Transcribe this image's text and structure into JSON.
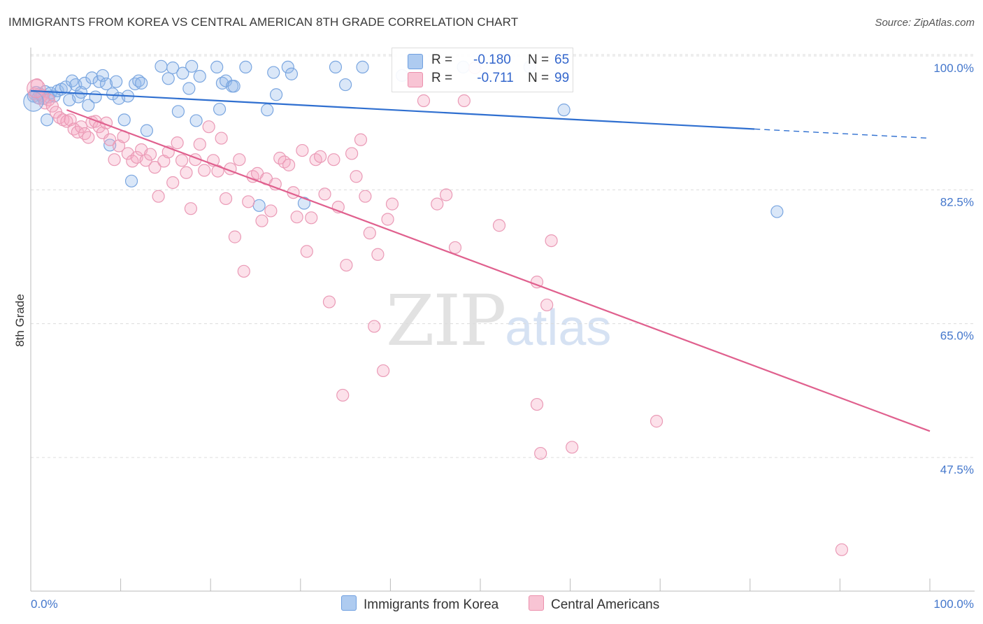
{
  "header": {
    "title": "IMMIGRANTS FROM KOREA VS CENTRAL AMERICAN 8TH GRADE CORRELATION CHART",
    "source": "Source: ZipAtlas.com"
  },
  "watermark": {
    "zip": "ZIP",
    "atlas": "atlas"
  },
  "legend": {
    "rows": [
      {
        "r_label": "R =",
        "r_value": "-0.180",
        "n_label": "N =",
        "n_value": "65",
        "color": "#aecbf0",
        "border": "#6f9fe0"
      },
      {
        "r_label": "R =",
        "r_value": " -0.711",
        "n_label": "N =",
        "n_value": "99",
        "color": "#f8c4d4",
        "border": "#ec8fac"
      }
    ]
  },
  "bottom_legend": [
    {
      "label": "Immigrants from Korea",
      "color": "#aecbf0",
      "border": "#6f9fe0"
    },
    {
      "label": "Central Americans",
      "color": "#f8c4d4",
      "border": "#ec8fac"
    }
  ],
  "colors": {
    "korea_fill": "rgba(150,185,235,0.35)",
    "korea_stroke": "#7aa6e0",
    "korea_line": "#2f6fd0",
    "central_fill": "rgba(245,170,195,0.35)",
    "central_stroke": "#ea9ab6",
    "central_line": "#e0608e",
    "grid": "#dcdcdc",
    "tick_text": "#4477cc"
  },
  "chart_data": {
    "type": "scatter",
    "title": "IMMIGRANTS FROM KOREA VS CENTRAL AMERICAN 8TH GRADE CORRELATION CHART",
    "xlabel": "",
    "ylabel": "8th Grade",
    "xlim": [
      0,
      100
    ],
    "ylim": [
      31.5,
      103.0
    ],
    "x_tick_labels": [
      "0.0%",
      "100.0%"
    ],
    "y_ticks": [
      100.0,
      82.5,
      65.0,
      47.5
    ],
    "y_tick_labels": [
      "100.0%",
      "82.5%",
      "65.0%",
      "47.5%"
    ],
    "grid": true,
    "legend_position": "top-center",
    "series": [
      {
        "name": "Immigrants from Korea",
        "R": -0.18,
        "N": 65,
        "trend": {
          "x0": 0,
          "y0": 97.0,
          "x1": 80.5,
          "y1": 92.0,
          "dashed_to_x": 100,
          "dashed_to_y": 90.8
        },
        "points": [
          [
            0.3,
            96.3
          ],
          [
            0.6,
            96.8
          ],
          [
            0.8,
            96.1
          ],
          [
            1.0,
            96.6
          ],
          [
            1.2,
            96.4
          ],
          [
            1.4,
            96.0
          ],
          [
            1.6,
            96.9
          ],
          [
            1.8,
            93.2
          ],
          [
            2.0,
            96.2
          ],
          [
            2.2,
            96.7
          ],
          [
            2.6,
            96.3
          ],
          [
            3.0,
            97.0
          ],
          [
            3.4,
            97.2
          ],
          [
            3.9,
            97.5
          ],
          [
            4.3,
            95.8
          ],
          [
            4.6,
            98.3
          ],
          [
            5.0,
            97.8
          ],
          [
            5.3,
            96.2
          ],
          [
            5.6,
            96.8
          ],
          [
            6.0,
            98.0
          ],
          [
            6.4,
            95.1
          ],
          [
            6.8,
            98.7
          ],
          [
            7.2,
            96.2
          ],
          [
            7.6,
            98.2
          ],
          [
            8.0,
            99.0
          ],
          [
            8.4,
            97.9
          ],
          [
            8.8,
            89.9
          ],
          [
            9.1,
            96.6
          ],
          [
            9.5,
            98.2
          ],
          [
            9.8,
            96.0
          ],
          [
            10.4,
            93.2
          ],
          [
            10.8,
            96.3
          ],
          [
            11.2,
            85.2
          ],
          [
            11.6,
            97.9
          ],
          [
            12.0,
            98.3
          ],
          [
            12.3,
            98.0
          ],
          [
            12.9,
            91.8
          ],
          [
            14.5,
            100.2
          ],
          [
            15.3,
            98.6
          ],
          [
            15.8,
            100.0
          ],
          [
            16.4,
            94.3
          ],
          [
            16.9,
            99.3
          ],
          [
            17.6,
            97.3
          ],
          [
            17.9,
            100.2
          ],
          [
            18.4,
            93.1
          ],
          [
            18.8,
            98.9
          ],
          [
            20.7,
            100.1
          ],
          [
            21.0,
            94.6
          ],
          [
            21.3,
            98.0
          ],
          [
            21.7,
            98.3
          ],
          [
            22.4,
            97.6
          ],
          [
            22.6,
            97.6
          ],
          [
            23.9,
            100.1
          ],
          [
            25.4,
            82.0
          ],
          [
            26.3,
            94.5
          ],
          [
            27.0,
            99.4
          ],
          [
            27.3,
            96.5
          ],
          [
            28.6,
            100.1
          ],
          [
            29.0,
            99.2
          ],
          [
            30.4,
            82.3
          ],
          [
            33.9,
            100.1
          ],
          [
            35.0,
            97.8
          ],
          [
            36.9,
            100.1
          ],
          [
            41.3,
            99.0
          ],
          [
            48.1,
            100.1
          ]
        ],
        "extra_points": [
          [
            55.5,
            100.1
          ],
          [
            59.3,
            94.5
          ],
          [
            83.0,
            81.2
          ]
        ]
      },
      {
        "name": "Central Americans",
        "R": -0.711,
        "N": 99,
        "trend": {
          "x0": 4.0,
          "y0": 94.5,
          "x1": 100,
          "y1": 52.5
        },
        "points": [
          [
            0.4,
            96.6
          ],
          [
            0.7,
            97.8
          ],
          [
            1.0,
            96.0
          ],
          [
            1.3,
            96.4
          ],
          [
            1.6,
            95.4
          ],
          [
            2.0,
            95.8
          ],
          [
            2.4,
            95.0
          ],
          [
            2.8,
            94.2
          ],
          [
            3.2,
            93.5
          ],
          [
            3.6,
            93.2
          ],
          [
            4.0,
            93.0
          ],
          [
            4.4,
            93.2
          ],
          [
            4.8,
            92.0
          ],
          [
            5.2,
            91.6
          ],
          [
            5.6,
            92.3
          ],
          [
            6.0,
            91.4
          ],
          [
            6.4,
            90.9
          ],
          [
            6.8,
            92.9
          ],
          [
            7.2,
            93.0
          ],
          [
            7.6,
            92.3
          ],
          [
            8.0,
            91.5
          ],
          [
            8.4,
            92.8
          ],
          [
            8.8,
            90.6
          ],
          [
            9.3,
            88.0
          ],
          [
            9.8,
            89.8
          ],
          [
            10.3,
            91.0
          ],
          [
            10.8,
            88.8
          ],
          [
            11.3,
            87.8
          ],
          [
            11.8,
            88.3
          ],
          [
            12.3,
            89.3
          ],
          [
            12.8,
            87.9
          ],
          [
            13.3,
            88.7
          ],
          [
            13.8,
            87.0
          ],
          [
            14.2,
            83.2
          ],
          [
            14.8,
            87.8
          ],
          [
            15.3,
            89.0
          ],
          [
            15.8,
            85.0
          ],
          [
            16.3,
            90.2
          ],
          [
            16.8,
            87.9
          ],
          [
            17.3,
            86.3
          ],
          [
            17.8,
            81.6
          ],
          [
            18.3,
            88.0
          ],
          [
            18.8,
            90.0
          ],
          [
            19.3,
            86.6
          ],
          [
            19.8,
            92.3
          ],
          [
            20.3,
            87.9
          ],
          [
            20.8,
            86.5
          ],
          [
            21.2,
            90.8
          ],
          [
            21.7,
            82.9
          ],
          [
            22.2,
            86.8
          ],
          [
            22.7,
            77.9
          ],
          [
            23.2,
            88.0
          ],
          [
            23.7,
            73.4
          ],
          [
            24.2,
            82.5
          ],
          [
            24.7,
            85.8
          ],
          [
            25.2,
            86.2
          ],
          [
            25.7,
            80.0
          ],
          [
            26.2,
            85.5
          ],
          [
            26.7,
            81.3
          ],
          [
            27.2,
            84.8
          ],
          [
            27.7,
            88.2
          ],
          [
            28.2,
            87.7
          ],
          [
            28.7,
            87.3
          ],
          [
            29.2,
            83.7
          ],
          [
            29.6,
            80.5
          ],
          [
            30.2,
            89.2
          ],
          [
            30.7,
            76.0
          ],
          [
            31.2,
            80.4
          ],
          [
            31.7,
            88.0
          ],
          [
            32.2,
            88.4
          ],
          [
            32.7,
            83.5
          ],
          [
            33.2,
            69.4
          ],
          [
            33.7,
            88.0
          ],
          [
            34.2,
            81.8
          ],
          [
            34.7,
            57.2
          ],
          [
            35.1,
            74.2
          ],
          [
            35.7,
            88.8
          ],
          [
            36.2,
            85.8
          ],
          [
            36.7,
            90.6
          ],
          [
            37.2,
            83.2
          ],
          [
            37.7,
            78.4
          ],
          [
            38.2,
            66.2
          ],
          [
            38.6,
            75.6
          ],
          [
            39.2,
            60.4
          ],
          [
            39.7,
            80.2
          ],
          [
            40.2,
            82.2
          ],
          [
            43.7,
            95.7
          ],
          [
            45.2,
            82.2
          ],
          [
            46.2,
            83.4
          ],
          [
            47.2,
            76.5
          ],
          [
            48.2,
            95.7
          ],
          [
            49.4,
            100.0
          ],
          [
            52.1,
            79.4
          ],
          [
            56.3,
            72.0
          ],
          [
            57.4,
            69.0
          ],
          [
            57.9,
            77.4
          ],
          [
            60.2,
            50.4
          ],
          [
            69.6,
            53.8
          ],
          [
            90.2,
            37.0
          ]
        ],
        "extra_points": [
          [
            56.7,
            49.6
          ],
          [
            56.3,
            56.0
          ]
        ]
      }
    ]
  }
}
